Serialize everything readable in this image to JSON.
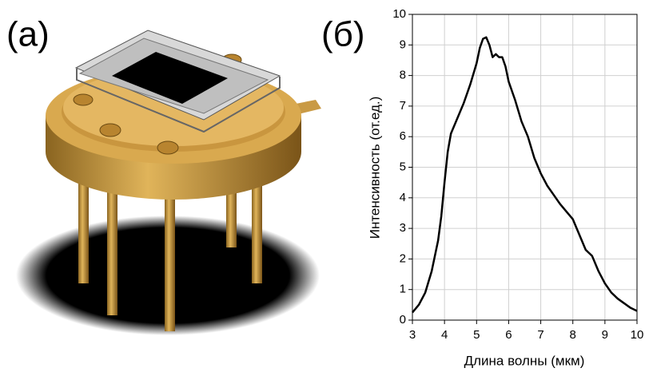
{
  "panel_labels": {
    "left": "(а)",
    "right": "(б)"
  },
  "chart_data": {
    "type": "line",
    "xlabel": "Длина волны (мкм)",
    "ylabel": "Интенсивность (от.ед.)",
    "x": [
      3.0,
      3.2,
      3.4,
      3.6,
      3.8,
      3.9,
      4.0,
      4.1,
      4.2,
      4.4,
      4.6,
      4.8,
      5.0,
      5.1,
      5.2,
      5.3,
      5.4,
      5.5,
      5.6,
      5.7,
      5.8,
      5.9,
      6.0,
      6.2,
      6.4,
      6.6,
      6.8,
      7.0,
      7.2,
      7.4,
      7.6,
      7.8,
      8.0,
      8.2,
      8.4,
      8.5,
      8.6,
      8.8,
      9.0,
      9.2,
      9.4,
      9.6,
      9.8,
      10.0
    ],
    "series": [
      {
        "color": "#000000",
        "values": [
          0.25,
          0.5,
          0.9,
          1.6,
          2.6,
          3.4,
          4.5,
          5.5,
          6.1,
          6.6,
          7.1,
          7.7,
          8.4,
          8.9,
          9.2,
          9.25,
          9.0,
          8.6,
          8.7,
          8.6,
          8.6,
          8.3,
          7.8,
          7.2,
          6.5,
          6.0,
          5.3,
          4.8,
          4.4,
          4.1,
          3.8,
          3.55,
          3.3,
          2.8,
          2.3,
          2.2,
          2.1,
          1.6,
          1.2,
          0.9,
          0.7,
          0.55,
          0.4,
          0.3
        ]
      }
    ],
    "xlim": [
      3,
      10
    ],
    "xticks": [
      3,
      4,
      5,
      6,
      7,
      8,
      9,
      10
    ],
    "ylim": [
      0,
      10
    ],
    "yticks": [
      0,
      1,
      2,
      3,
      4,
      5,
      6,
      7,
      8,
      9,
      10
    ],
    "grid": true
  }
}
